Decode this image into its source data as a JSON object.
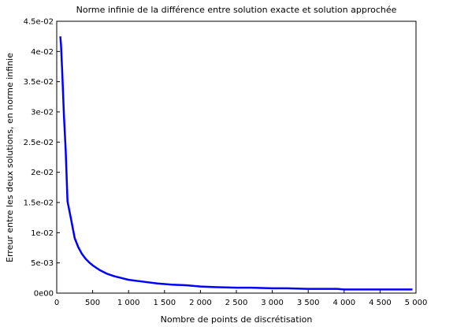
{
  "chart_data": {
    "type": "line",
    "title": "Norme infinie de la différence entre solution exacte et solution approchée",
    "xlabel": "Nombre de points de discrétisation",
    "ylabel": "Erreur entre les deux solutions, en norme infinie",
    "xlim": [
      0,
      5000
    ],
    "ylim": [
      0,
      0.045
    ],
    "grid": false,
    "x_ticks": [
      0,
      500,
      1000,
      1500,
      2000,
      2500,
      3000,
      3500,
      4000,
      4500,
      5000
    ],
    "x_tick_labels": [
      "0",
      "500",
      "1 000",
      "1 500",
      "2 000",
      "2 500",
      "3 000",
      "3 500",
      "4 000",
      "4 500",
      "5 000"
    ],
    "y_ticks": [
      0,
      0.005,
      0.01,
      0.015,
      0.02,
      0.025,
      0.03,
      0.035,
      0.04,
      0.045
    ],
    "y_tick_labels": [
      "0e00",
      "5e-03",
      "1e-02",
      "1.5e-02",
      "2e-02",
      "2.5e-02",
      "3e-02",
      "3.5e-02",
      "4e-02",
      "4.5e-02"
    ],
    "series": [
      {
        "color": "#0000ff",
        "x": [
          50,
          60,
          75,
          100,
          125,
          150,
          200,
          250,
          300,
          350,
          400,
          450,
          500,
          600,
          700,
          800,
          900,
          1000,
          1200,
          1400,
          1600,
          1800,
          2000,
          2200,
          2500,
          2700,
          3000,
          3200,
          3500,
          3900,
          4000,
          4500,
          4950
        ],
        "y": [
          0.0425,
          0.041,
          0.037,
          0.0295,
          0.0235,
          0.0152,
          0.0122,
          0.0091,
          0.0076,
          0.0065,
          0.0057,
          0.0051,
          0.0046,
          0.0038,
          0.0032,
          0.0028,
          0.0025,
          0.0022,
          0.0019,
          0.0016,
          0.0014,
          0.0013,
          0.0011,
          0.001,
          0.0009,
          0.0009,
          0.0008,
          0.0008,
          0.0007,
          0.0007,
          0.0006,
          0.0006,
          0.0006
        ]
      }
    ]
  }
}
